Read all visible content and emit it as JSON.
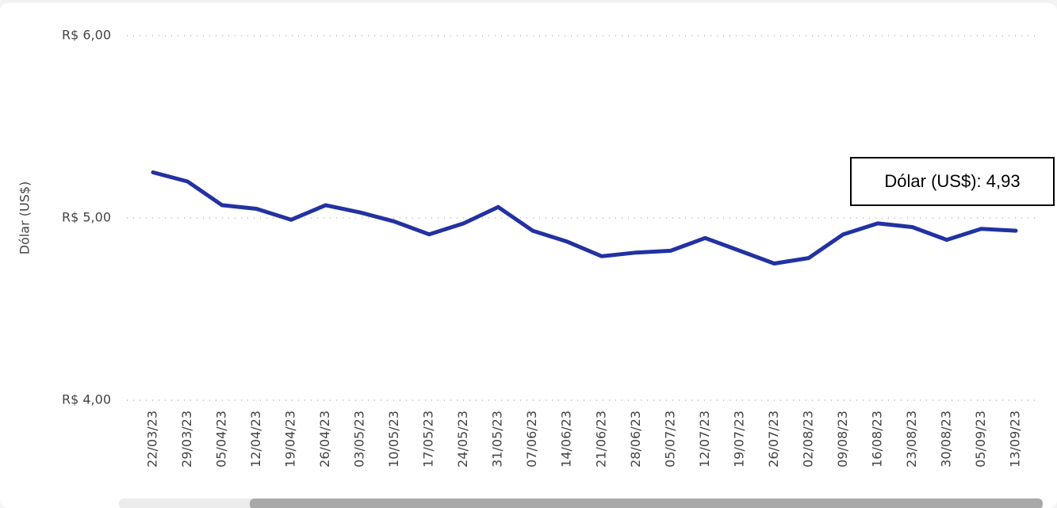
{
  "chart_data": {
    "type": "line",
    "y_label": "Dólar (US$)",
    "categories": [
      "22/03/23",
      "29/03/23",
      "05/04/23",
      "12/04/23",
      "19/04/23",
      "26/04/23",
      "03/05/23",
      "10/05/23",
      "17/05/23",
      "24/05/23",
      "31/05/23",
      "07/06/23",
      "14/06/23",
      "21/06/23",
      "28/06/23",
      "05/07/23",
      "12/07/23",
      "19/07/23",
      "26/07/23",
      "02/08/23",
      "09/08/23",
      "16/08/23",
      "23/08/23",
      "30/08/23",
      "05/09/23",
      "13/09/23"
    ],
    "series": [
      {
        "name": "Dólar (US$)",
        "color": "#2232a2",
        "values": [
          5.25,
          5.2,
          5.07,
          5.05,
          4.99,
          5.07,
          5.03,
          4.98,
          4.91,
          4.97,
          5.06,
          4.93,
          4.87,
          4.79,
          4.81,
          4.82,
          4.89,
          4.82,
          4.75,
          4.78,
          4.91,
          4.97,
          4.95,
          4.88,
          4.94,
          4.93
        ]
      }
    ],
    "ylim": [
      4,
      6
    ],
    "yticks": [
      {
        "value": 4,
        "label": "R$ 4,00"
      },
      {
        "value": 5,
        "label": "R$ 5,00"
      },
      {
        "value": 6,
        "label": "R$ 6,00"
      }
    ],
    "grid": true,
    "tooltip": "Dólar (US$): 4,93"
  }
}
